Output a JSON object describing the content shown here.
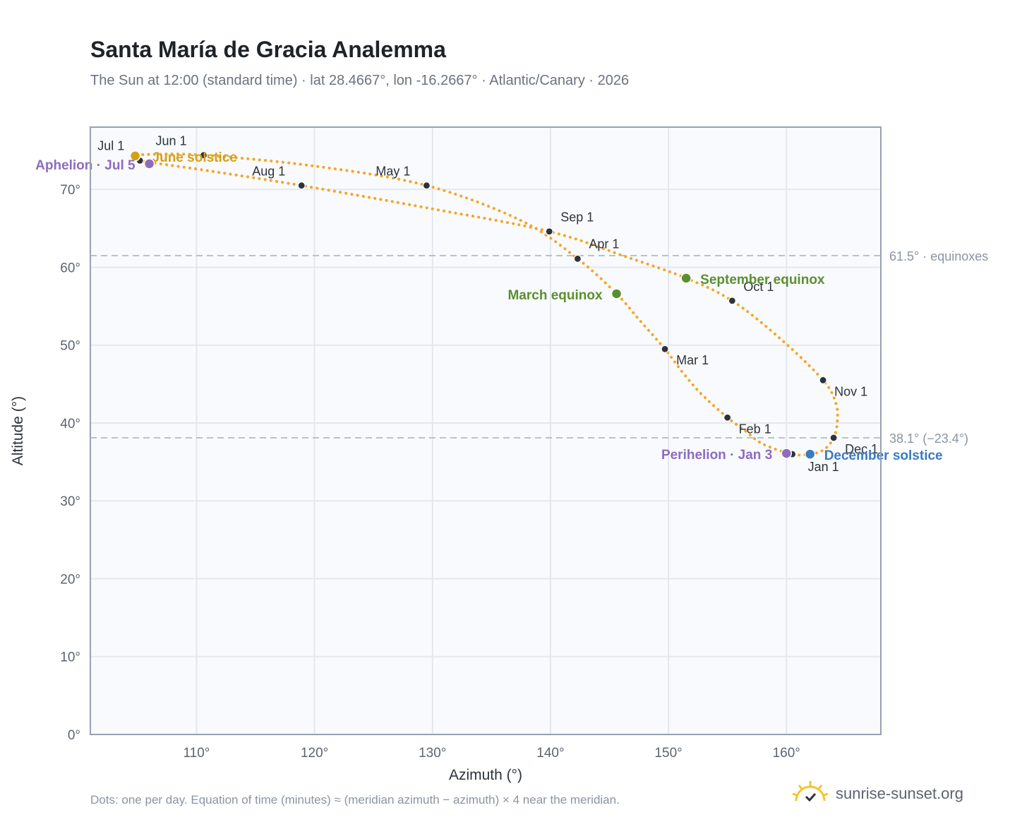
{
  "chart_data": {
    "type": "scatter",
    "title": "Santa María de Gracia Analemma",
    "subtitle": "The Sun at 12:00 (standard time) · lat 28.4667°, lon -16.2667° · Atlantic/Canary · 2026",
    "xlabel": "Azimuth (°)",
    "ylabel": "Altitude (°)",
    "xlim": [
      101,
      168
    ],
    "ylim": [
      0,
      78
    ],
    "x_ticks": [
      110,
      120,
      130,
      140,
      150,
      160
    ],
    "x_tick_labels": [
      "110°",
      "120°",
      "130°",
      "140°",
      "150°",
      "160°"
    ],
    "y_ticks": [
      0,
      10,
      20,
      30,
      40,
      50,
      60,
      70
    ],
    "y_tick_labels": [
      "0°",
      "10°",
      "20°",
      "30°",
      "40°",
      "50°",
      "60°",
      "70°"
    ],
    "grid": true,
    "colors": {
      "path": "#f5a623",
      "month_marker": "#2d333b",
      "equinox": "#5a8f2f",
      "solstice_june": "#d4a017",
      "solstice_december": "#3b7bbf",
      "apsis": "#8e6bbf",
      "reference_line": "#aab6c4"
    },
    "reference_lines": [
      {
        "y": 61.5,
        "label": "61.5° · equinoxes"
      },
      {
        "y": 38.1,
        "label": "38.1° (−23.4°)"
      }
    ],
    "path_points": [
      {
        "month": "Jan",
        "day": 1,
        "az": 160.5,
        "alt": 36.0
      },
      {
        "month": "Jan",
        "day": 12,
        "az": 158.0,
        "alt": 37.3
      },
      {
        "month": "Jan",
        "day": 22,
        "az": 156.5,
        "alt": 39.0
      },
      {
        "month": "Feb",
        "day": 1,
        "az": 155.0,
        "alt": 40.7
      },
      {
        "month": "Feb",
        "day": 12,
        "az": 152.8,
        "alt": 43.7
      },
      {
        "month": "Feb",
        "day": 20,
        "az": 151.2,
        "alt": 46.5
      },
      {
        "month": "Mar",
        "day": 1,
        "az": 149.7,
        "alt": 49.5
      },
      {
        "month": "Mar",
        "day": 12,
        "az": 147.5,
        "alt": 53.3
      },
      {
        "month": "Mar",
        "day": 20,
        "az": 145.6,
        "alt": 56.6
      },
      {
        "month": "Apr",
        "day": 1,
        "az": 142.3,
        "alt": 61.1
      },
      {
        "month": "Apr",
        "day": 15,
        "az": 137.5,
        "alt": 66.0
      },
      {
        "month": "May",
        "day": 1,
        "az": 129.5,
        "alt": 70.5
      },
      {
        "month": "May",
        "day": 15,
        "az": 120.0,
        "alt": 73.0
      },
      {
        "month": "Jun",
        "day": 1,
        "az": 110.6,
        "alt": 74.4
      },
      {
        "month": "Jun",
        "day": 15,
        "az": 106.3,
        "alt": 74.5
      },
      {
        "month": "Jun",
        "day": 21,
        "az": 104.8,
        "alt": 74.3
      },
      {
        "month": "Jul",
        "day": 1,
        "az": 105.2,
        "alt": 73.7
      },
      {
        "month": "Jul",
        "day": 15,
        "az": 111.0,
        "alt": 72.4
      },
      {
        "month": "Aug",
        "day": 1,
        "az": 118.9,
        "alt": 70.5
      },
      {
        "month": "Aug",
        "day": 15,
        "az": 130.0,
        "alt": 67.5
      },
      {
        "month": "Sep",
        "day": 1,
        "az": 139.9,
        "alt": 64.6
      },
      {
        "month": "Sep",
        "day": 12,
        "az": 146.5,
        "alt": 61.3
      },
      {
        "month": "Sep",
        "day": 23,
        "az": 151.5,
        "alt": 58.6
      },
      {
        "month": "Oct",
        "day": 1,
        "az": 155.4,
        "alt": 55.7
      },
      {
        "month": "Oct",
        "day": 15,
        "az": 159.5,
        "alt": 50.8
      },
      {
        "month": "Nov",
        "day": 1,
        "az": 163.1,
        "alt": 45.5
      },
      {
        "month": "Nov",
        "day": 12,
        "az": 164.2,
        "alt": 42.5
      },
      {
        "month": "Nov",
        "day": 20,
        "az": 164.3,
        "alt": 40.0
      },
      {
        "month": "Dec",
        "day": 1,
        "az": 164.0,
        "alt": 38.1
      },
      {
        "month": "Dec",
        "day": 12,
        "az": 163.2,
        "alt": 36.6
      },
      {
        "month": "Dec",
        "day": 21,
        "az": 162.0,
        "alt": 36.0
      }
    ],
    "month_markers": [
      {
        "label": "Jan 1",
        "az": 160.5,
        "alt": 36.0,
        "dx": 22,
        "dy": 24
      },
      {
        "label": "Feb 1",
        "az": 155.0,
        "alt": 40.7,
        "dx": 16,
        "dy": 22
      },
      {
        "label": "Mar 1",
        "az": 149.7,
        "alt": 49.5,
        "dx": 16,
        "dy": 22
      },
      {
        "label": "Apr 1",
        "az": 142.3,
        "alt": 61.1,
        "dx": 16,
        "dy": -15
      },
      {
        "label": "May 1",
        "az": 129.5,
        "alt": 70.5,
        "dx": -72,
        "dy": -14
      },
      {
        "label": "Jun 1",
        "az": 110.6,
        "alt": 74.4,
        "dx": -68,
        "dy": -14
      },
      {
        "label": "Jul 1",
        "az": 105.2,
        "alt": 73.7,
        "dx": -60,
        "dy": -15
      },
      {
        "label": "Aug 1",
        "az": 118.9,
        "alt": 70.5,
        "dx": -70,
        "dy": -14
      },
      {
        "label": "Sep 1",
        "az": 139.9,
        "alt": 64.6,
        "dx": 16,
        "dy": -14
      },
      {
        "label": "Oct 1",
        "az": 155.4,
        "alt": 55.7,
        "dx": 16,
        "dy": -14
      },
      {
        "label": "Nov 1",
        "az": 163.1,
        "alt": 45.5,
        "dx": 16,
        "dy": 22
      },
      {
        "label": "Dec 1",
        "az": 164.0,
        "alt": 38.1,
        "dx": 16,
        "dy": 22
      }
    ],
    "events": [
      {
        "label": "June solstice",
        "az": 104.8,
        "alt": 74.3,
        "color": "#d4a017",
        "anchor": "start",
        "dx": 24,
        "dy": 8
      },
      {
        "label": "December solstice",
        "az": 162.0,
        "alt": 36.0,
        "color": "#3b7bbf",
        "anchor": "start",
        "dx": 20,
        "dy": 8
      },
      {
        "label": "March equinox",
        "az": 145.6,
        "alt": 56.6,
        "color": "#5a8f2f",
        "anchor": "end",
        "dx": -20,
        "dy": 8
      },
      {
        "label": "September equinox",
        "az": 151.5,
        "alt": 58.6,
        "color": "#5a8f2f",
        "anchor": "start",
        "dx": 20,
        "dy": 8
      },
      {
        "label": "Perihelion · Jan 3",
        "az": 160.0,
        "alt": 36.1,
        "color": "#8e6bbf",
        "anchor": "end",
        "dx": -20,
        "dy": 8
      },
      {
        "label": "Aphelion · Jul 5",
        "az": 106.0,
        "alt": 73.3,
        "color": "#8e6bbf",
        "anchor": "end",
        "dx": -20,
        "dy": 8
      }
    ]
  },
  "footnote": "Dots: one per day. Equation of time (minutes) ≈ (meridian azimuth − azimuth) × 4 near the meridian.",
  "brand": {
    "name": "sunrise-sunset.org",
    "icon": "sun-logo-icon",
    "icon_color": "#f4c430"
  }
}
